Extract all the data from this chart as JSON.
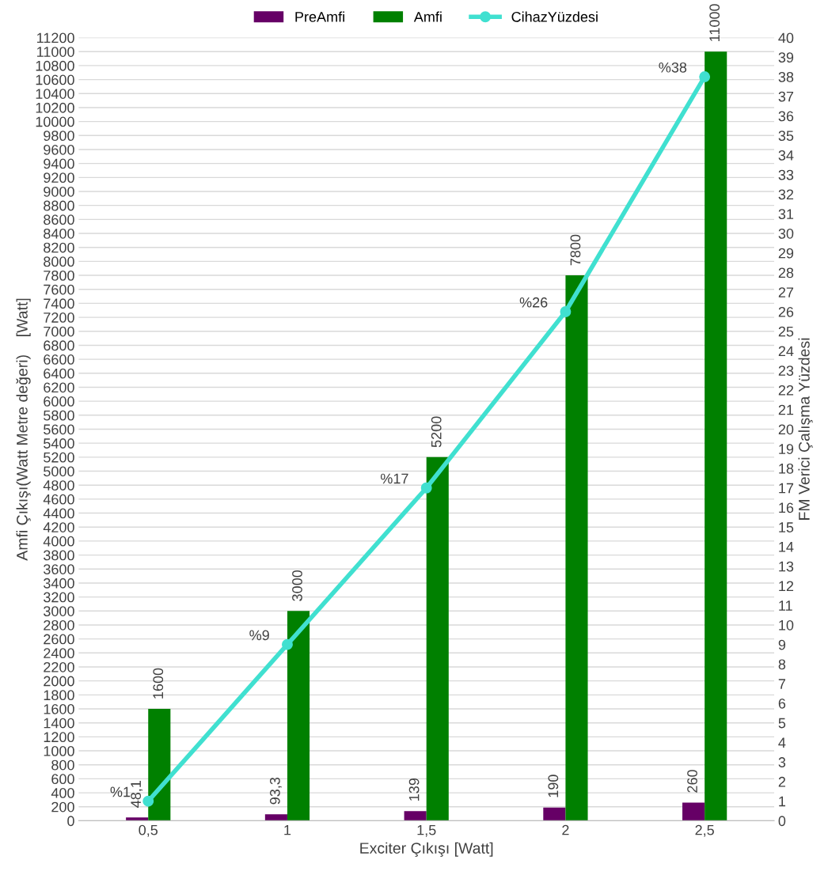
{
  "chart_data": {
    "type": "bar",
    "xlabel": "Exciter Çıkışı [Watt]",
    "ylabel": "Amfi Çıkışı(Watt Metre değeri)    [Watt]",
    "y2label": "FM Verici Çalışma Yüzdesi",
    "categories": [
      "0,5",
      "1",
      "1,5",
      "2",
      "2,5"
    ],
    "series": [
      {
        "name": "PreAmfi",
        "color": "#660066",
        "values": [
          48.1,
          93.3,
          139,
          190,
          260
        ],
        "value_labels": [
          "48,1",
          "93,3",
          "139",
          "190",
          "260"
        ]
      },
      {
        "name": "Amfi",
        "color": "#008000",
        "values": [
          1600,
          3000,
          5200,
          7800,
          11000
        ],
        "value_labels": [
          "1600",
          "3000",
          "5200",
          "7800",
          "11000"
        ]
      },
      {
        "name": "CihazYüzdesi",
        "type": "line",
        "axis": "y2",
        "color": "#40e0d0",
        "marker": "circle",
        "values": [
          1,
          9,
          17,
          26,
          38
        ],
        "value_labels": [
          "%1",
          "%9",
          "%17",
          "%26",
          "%38"
        ]
      }
    ],
    "ylim": [
      0,
      11200
    ],
    "yticks": [
      0,
      200,
      400,
      600,
      800,
      1000,
      1200,
      1400,
      1600,
      1800,
      2000,
      2200,
      2400,
      2600,
      2800,
      3000,
      3200,
      3400,
      3600,
      3800,
      4000,
      4200,
      4400,
      4600,
      4800,
      5000,
      5200,
      5400,
      5600,
      5800,
      6000,
      6200,
      6400,
      6600,
      6800,
      7000,
      7200,
      7400,
      7600,
      7800,
      8000,
      8200,
      8400,
      8600,
      8800,
      9000,
      9200,
      9400,
      9600,
      9800,
      10000,
      10200,
      10400,
      10600,
      10800,
      11000,
      11200
    ],
    "y2lim": [
      0,
      40
    ],
    "y2ticks": [
      0,
      1,
      2,
      3,
      4,
      5,
      6,
      7,
      8,
      9,
      10,
      11,
      12,
      13,
      14,
      15,
      16,
      17,
      18,
      19,
      20,
      21,
      22,
      23,
      24,
      25,
      26,
      27,
      28,
      29,
      30,
      31,
      32,
      33,
      34,
      35,
      36,
      37,
      38,
      39,
      40
    ],
    "grid": "y",
    "legend": "top"
  }
}
